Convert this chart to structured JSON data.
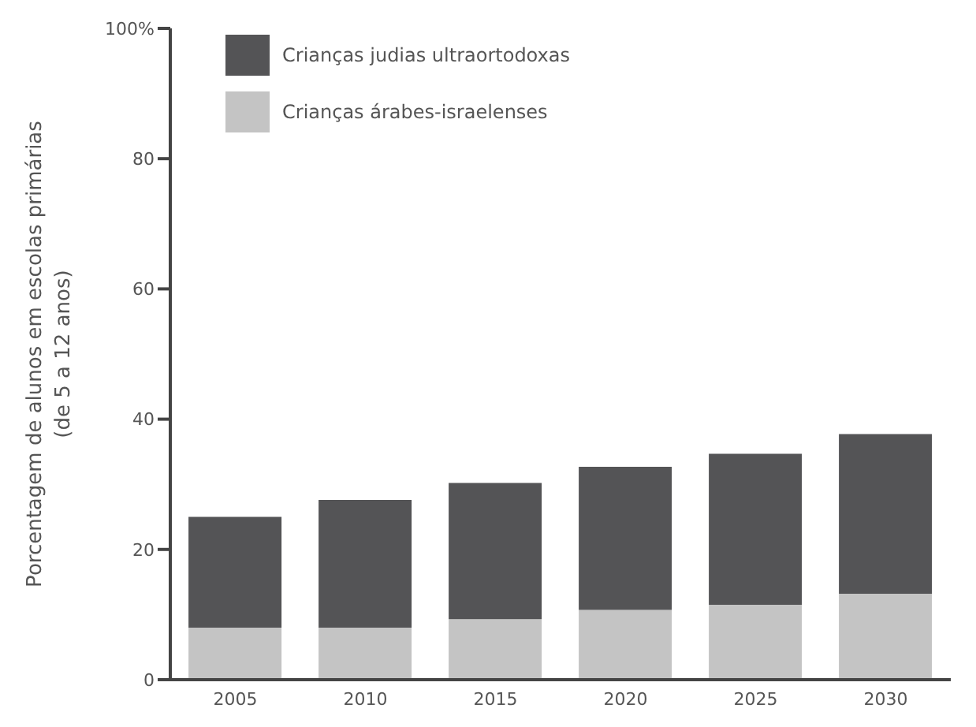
{
  "chart_data": {
    "type": "bar",
    "stacked": true,
    "ylabel": "Porcentagem de alunos em escolas primárias\n(de 5 a 12 anos)",
    "categories": [
      "2005",
      "2010",
      "2015",
      "2020",
      "2025",
      "2030"
    ],
    "series": [
      {
        "name": "Crianças árabes-israelenses",
        "color": "#c4c4c4",
        "values": [
          8,
          8,
          9.3,
          10.7,
          11.5,
          13.2
        ]
      },
      {
        "name": "Crianças judias ultraortodoxas",
        "color": "#545456",
        "values": [
          17,
          19.6,
          20.9,
          22,
          23.2,
          24.5
        ]
      }
    ],
    "ylim": [
      0,
      100
    ],
    "yticks": [
      0,
      20,
      40,
      60,
      80,
      {
        "value": 100,
        "label": "100%"
      }
    ],
    "legend": "top left"
  }
}
